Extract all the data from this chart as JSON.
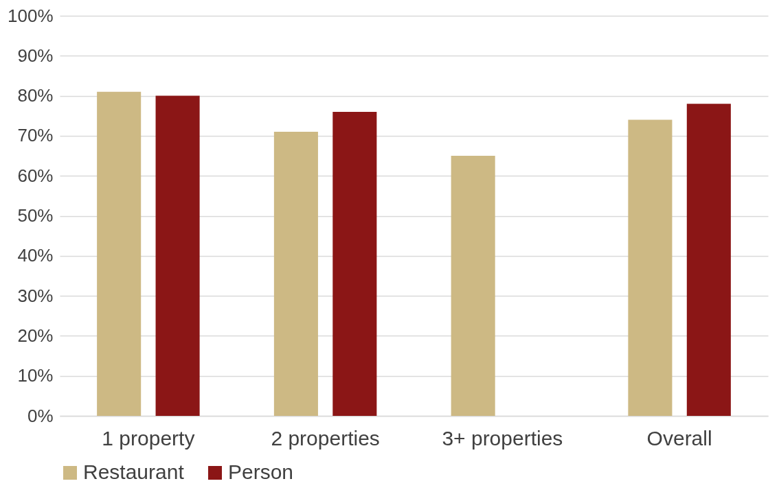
{
  "chart_data": {
    "type": "bar",
    "categories": [
      "1 property",
      "2 properties",
      "3+ properties",
      "Overall"
    ],
    "series": [
      {
        "name": "Restaurant",
        "color": "#cdb984",
        "values": [
          81,
          71,
          65,
          74
        ]
      },
      {
        "name": "Person",
        "color": "#8b1616",
        "values": [
          80,
          76,
          null,
          78
        ]
      }
    ],
    "ylim": [
      0,
      100
    ],
    "yticks": [
      {
        "value": 0,
        "label": "0%"
      },
      {
        "value": 10,
        "label": "10%"
      },
      {
        "value": 20,
        "label": "20%"
      },
      {
        "value": 30,
        "label": "30%"
      },
      {
        "value": 40,
        "label": "40%"
      },
      {
        "value": 50,
        "label": "50%"
      },
      {
        "value": 60,
        "label": "60%"
      },
      {
        "value": 70,
        "label": "70%"
      },
      {
        "value": 80,
        "label": "80%"
      },
      {
        "value": 90,
        "label": "90%"
      },
      {
        "value": 100,
        "label": "100%"
      }
    ],
    "grid": "y",
    "legend": "bottom"
  }
}
